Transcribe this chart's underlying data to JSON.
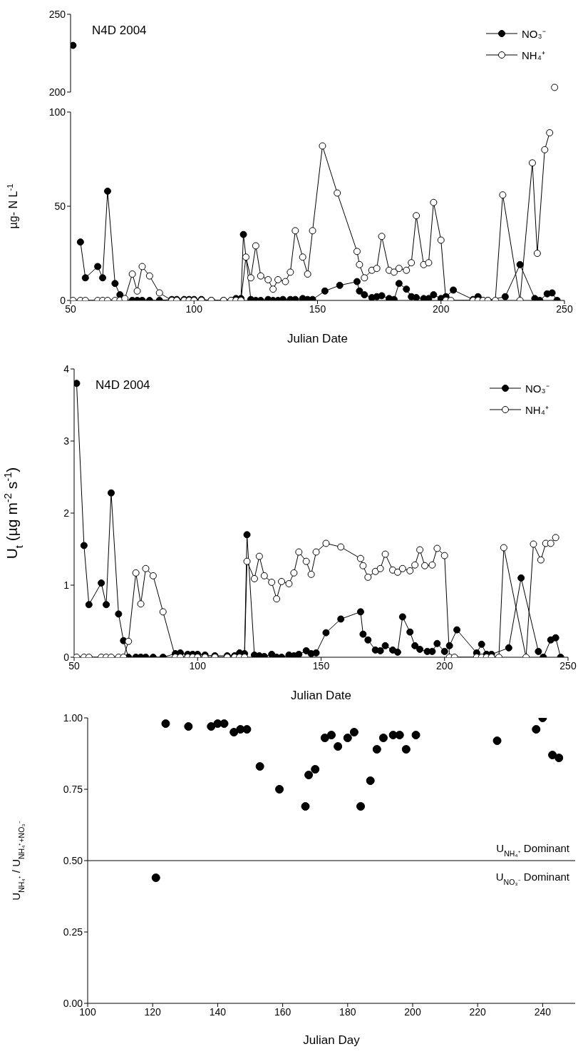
{
  "chart_data": [
    {
      "type": "line",
      "annotations": [
        "N4D 2004"
      ],
      "xlim": [
        50,
        250
      ],
      "ylim": [
        200,
        250
      ],
      "yticks": [
        200,
        250
      ],
      "tick_labels": "y",
      "legend": "top right",
      "marker": "circle",
      "series": [
        {
          "name": "NO₃⁻",
          "color": "#000000",
          "x": [
            51
          ],
          "values": [
            230
          ]
        },
        {
          "name": "NH₄⁺",
          "color": "#ffffff",
          "x": [
            246
          ],
          "values": [
            203
          ]
        }
      ]
    },
    {
      "type": "line",
      "xlabel": "Julian Date",
      "ylabel": "µg- N L$^{-1}$",
      "xlim": [
        50,
        250
      ],
      "xticks": [
        50,
        100,
        150,
        200,
        250
      ],
      "ylim": [
        0,
        100
      ],
      "yticks": [
        0,
        50,
        100
      ],
      "marker": "circle",
      "series": [
        {
          "color": "#000000",
          "x": [
            54,
            56,
            61,
            63,
            65,
            68,
            70,
            72,
            75,
            77,
            79,
            82,
            86,
            91,
            93,
            96,
            98,
            100,
            103,
            107,
            112,
            115,
            117,
            119,
            120,
            123,
            125,
            127,
            130,
            132,
            134,
            136,
            139,
            141,
            144,
            146,
            148,
            153,
            159,
            166,
            167,
            169,
            172,
            174,
            176,
            179,
            181,
            183,
            186,
            188,
            190,
            193,
            195,
            197,
            200,
            202,
            205,
            213,
            215,
            217,
            219,
            226,
            232,
            238,
            240,
            243,
            245,
            247
          ],
          "values": [
            31,
            12,
            18,
            12,
            58,
            9,
            3,
            0,
            0,
            0,
            0,
            0,
            0,
            0.5,
            0.5,
            0.5,
            0.5,
            0.5,
            0.5,
            0,
            0,
            0,
            1,
            1,
            35,
            0.5,
            0,
            0,
            0.5,
            0,
            0,
            0.5,
            0.5,
            0.5,
            1,
            0.5,
            0.5,
            5,
            8,
            10,
            5,
            3,
            1.5,
            2,
            2.5,
            1,
            0.5,
            9,
            6,
            2,
            1.5,
            1,
            1,
            3,
            1,
            2,
            5.5,
            0.5,
            2,
            0,
            0,
            2,
            19,
            1,
            0,
            3.5,
            4,
            0
          ]
        },
        {
          "color": "#ffffff",
          "x": [
            51,
            54,
            56,
            61,
            63,
            65,
            68,
            70,
            72,
            75,
            77,
            79,
            82,
            86,
            91,
            93,
            96,
            98,
            100,
            103,
            107,
            112,
            115,
            117,
            119,
            121,
            123,
            125,
            127,
            130,
            132,
            134,
            137,
            139,
            141,
            144,
            146,
            148,
            152,
            158,
            166,
            167,
            169,
            172,
            174,
            176,
            179,
            181,
            183,
            186,
            188,
            190,
            193,
            195,
            197,
            200,
            202,
            204,
            213,
            215,
            217,
            219,
            222,
            225,
            232,
            237,
            239,
            242,
            244
          ],
          "values": [
            0,
            0,
            0,
            0,
            0,
            0,
            0,
            0,
            1,
            14,
            5,
            18,
            13,
            4,
            0,
            0,
            0,
            0,
            0,
            0,
            0,
            0,
            0,
            0,
            0,
            23,
            12,
            29,
            13,
            11,
            6,
            11,
            10,
            15,
            37,
            23,
            14,
            37,
            82,
            57,
            26,
            19,
            12,
            16,
            17,
            34,
            16,
            15,
            17,
            16,
            20,
            45,
            19,
            20,
            52,
            32,
            0,
            0,
            0,
            0,
            0,
            0,
            0,
            56,
            0,
            73,
            25,
            80,
            89
          ]
        }
      ]
    },
    {
      "type": "line",
      "annotations": [
        "N4D 2004"
      ],
      "xlabel": "Julian Date",
      "ylabel": "U$_{t}$ (µg m$^{-2}$ s$^{-1}$)",
      "xlim": [
        50,
        250
      ],
      "xticks": [
        50,
        100,
        150,
        200,
        250
      ],
      "ylim": [
        0,
        4
      ],
      "yticks": [
        0,
        1,
        2,
        3,
        4
      ],
      "legend": "top right",
      "marker": "circle",
      "series": [
        {
          "name": "NO₃⁻",
          "color": "#000000",
          "x": [
            51,
            54,
            56,
            61,
            63,
            65,
            68,
            70,
            72,
            75,
            77,
            79,
            82,
            86,
            91,
            93,
            96,
            98,
            100,
            103,
            107,
            112,
            115,
            117,
            119,
            120,
            123,
            125,
            127,
            130,
            132,
            134,
            137,
            139,
            141,
            144,
            146,
            148,
            152,
            158,
            166,
            167,
            169,
            172,
            174,
            176,
            179,
            181,
            183,
            186,
            188,
            190,
            193,
            195,
            197,
            200,
            202,
            205,
            213,
            215,
            217,
            219,
            226,
            231,
            238,
            240,
            243,
            245,
            247
          ],
          "values": [
            3.8,
            1.55,
            0.73,
            1.03,
            0.73,
            2.28,
            0.6,
            0.23,
            0,
            0,
            0,
            0,
            0,
            0,
            0.05,
            0.06,
            0.04,
            0.04,
            0.04,
            0.03,
            0.02,
            0.02,
            0.02,
            0.06,
            0.05,
            1.7,
            0.03,
            0.02,
            0.01,
            0.04,
            0,
            0,
            0.03,
            0.02,
            0.04,
            0.09,
            0.05,
            0.06,
            0.34,
            0.53,
            0.63,
            0.32,
            0.24,
            0.1,
            0.09,
            0.16,
            0.1,
            0.07,
            0.56,
            0.35,
            0.16,
            0.11,
            0.08,
            0.08,
            0.19,
            0.08,
            0.16,
            0.38,
            0.06,
            0.18,
            0.04,
            0.04,
            0.13,
            1.1,
            0.08,
            0,
            0.24,
            0.27,
            0
          ]
        },
        {
          "name": "NH₄⁺",
          "color": "#ffffff",
          "x": [
            51,
            54,
            56,
            61,
            63,
            65,
            68,
            70,
            72,
            75,
            77,
            79,
            82,
            86,
            91,
            93,
            96,
            98,
            100,
            103,
            107,
            112,
            115,
            117,
            119,
            120,
            123,
            125,
            127,
            130,
            132,
            134,
            137,
            139,
            141,
            144,
            146,
            148,
            152,
            158,
            166,
            167,
            169,
            172,
            174,
            176,
            179,
            181,
            183,
            186,
            188,
            190,
            192,
            195,
            197,
            200,
            202,
            204,
            213,
            215,
            217,
            219,
            222,
            224,
            233,
            236,
            239,
            241,
            243,
            245
          ],
          "values": [
            0,
            0,
            0,
            0,
            0,
            0,
            0,
            0,
            0.22,
            1.17,
            0.74,
            1.23,
            1.13,
            0.63,
            0,
            0,
            0,
            0,
            0,
            0,
            0,
            0,
            0,
            0,
            0,
            1.33,
            1.09,
            1.4,
            1.13,
            1.04,
            0.81,
            1.05,
            1.02,
            1.17,
            1.46,
            1.33,
            1.15,
            1.46,
            1.58,
            1.53,
            1.37,
            1.27,
            1.11,
            1.19,
            1.23,
            1.43,
            1.21,
            1.18,
            1.23,
            1.2,
            1.28,
            1.49,
            1.27,
            1.28,
            1.51,
            1.41,
            0,
            0,
            0,
            0,
            0,
            0,
            0,
            1.52,
            0,
            1.57,
            1.35,
            1.58,
            1.58,
            1.66
          ]
        }
      ]
    },
    {
      "type": "scatter",
      "xlabel": "Julian Day",
      "ylabel": "U$_{NH₄⁺}$ / U$_{NH₄⁺+NO₃⁻}$",
      "xlim": [
        100,
        250
      ],
      "xticks": [
        100,
        120,
        140,
        160,
        180,
        200,
        220,
        240
      ],
      "ylim": [
        0,
        1
      ],
      "yticks": [
        {
          "value": 0,
          "label": "0.00"
        },
        {
          "value": 0.25,
          "label": "0.25"
        },
        {
          "value": 0.5,
          "label": "0.50"
        },
        {
          "value": 0.75,
          "label": "0.75"
        },
        {
          "value": 1,
          "label": "1.00"
        }
      ],
      "marker": "circle",
      "ref_lines": [
        {
          "axis": "y",
          "value": 0.5
        }
      ],
      "annotations": [
        "U$_{NH₄⁺}$ Dominant",
        "U$_{NO₃⁻}$ Dominant"
      ],
      "color": "#000000",
      "x": [
        121,
        124,
        131,
        138,
        140,
        142,
        145,
        147,
        149,
        153,
        159,
        167,
        168,
        170,
        173,
        175,
        177,
        180,
        182,
        184,
        187,
        189,
        191,
        194,
        196,
        198,
        201,
        226,
        238,
        240,
        243,
        245
      ],
      "values": [
        0.44,
        0.98,
        0.97,
        0.97,
        0.98,
        0.98,
        0.95,
        0.96,
        0.96,
        0.83,
        0.75,
        0.69,
        0.8,
        0.82,
        0.93,
        0.94,
        0.9,
        0.93,
        0.95,
        0.69,
        0.78,
        0.89,
        0.93,
        0.94,
        0.94,
        0.89,
        0.94,
        0.92,
        0.96,
        1,
        0.87,
        0.86
      ]
    }
  ]
}
